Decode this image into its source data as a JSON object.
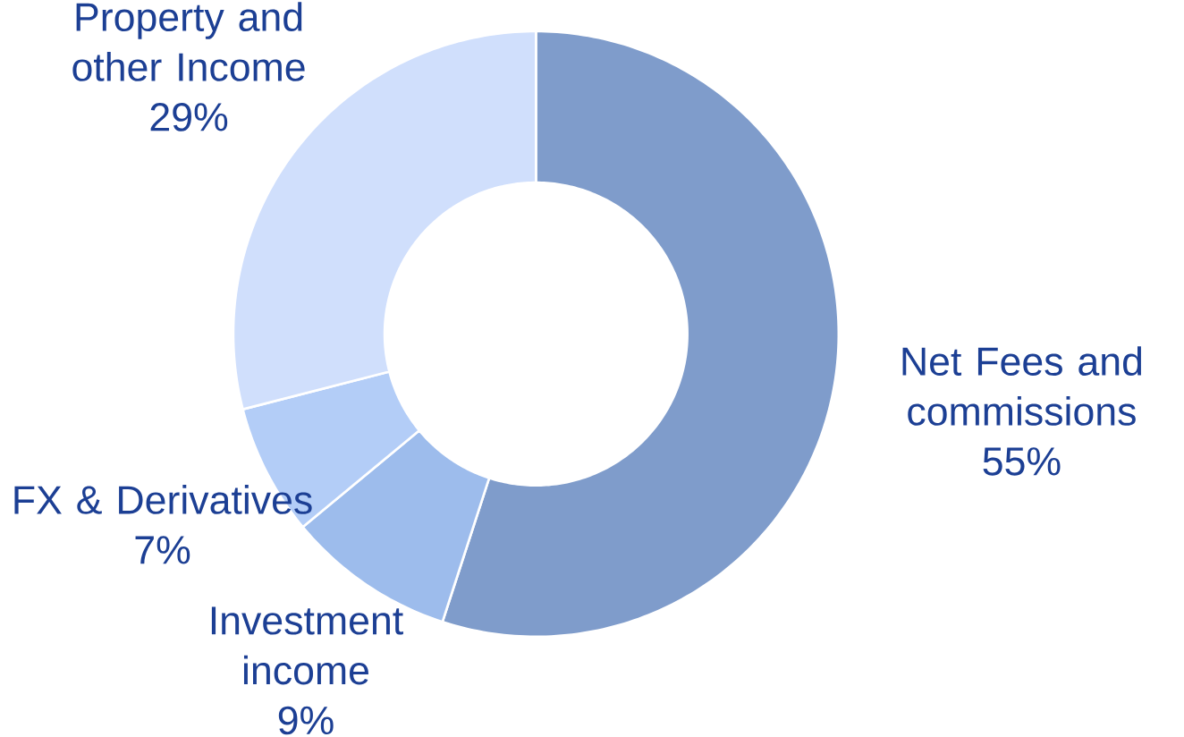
{
  "chart_data": {
    "type": "donut",
    "categories": [
      "Net Fees and commissions",
      "Investment income",
      "FX & Derivatives",
      "Property and other Income"
    ],
    "values": [
      55,
      9,
      7,
      29
    ],
    "colors": [
      "#7f9ccb",
      "#9dbcec",
      "#b3cdf7",
      "#d0dffc"
    ],
    "data_labels": true,
    "value_labels": [
      "55%",
      "9%",
      "7%",
      "29%"
    ]
  }
}
